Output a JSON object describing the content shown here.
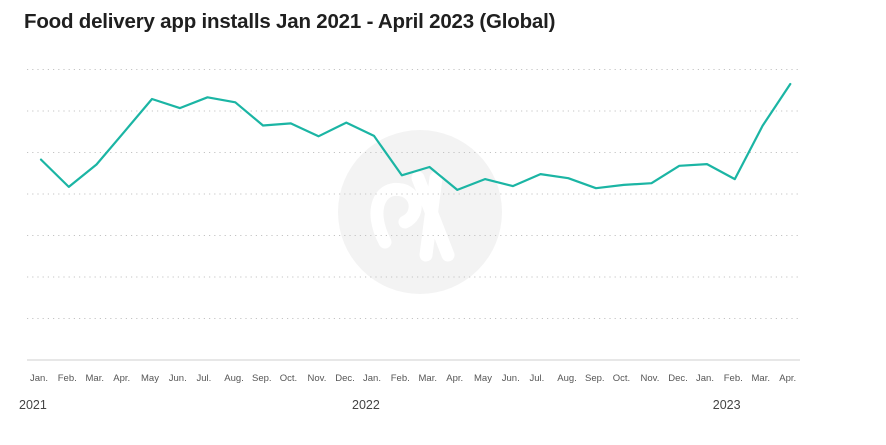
{
  "chart_data": {
    "type": "line",
    "title": "Food delivery app installs Jan 2021 - April 2023 (Global)",
    "xlabel": "",
    "ylabel": "",
    "grid": true,
    "y_tick_labels_shown": false,
    "ylim": [
      0,
      7
    ],
    "line_color": "#1bb5a4",
    "categories": [
      "Jan.",
      "Feb.",
      "Mar.",
      "Apr.",
      "May",
      "Jun.",
      "Jul.",
      "Aug.",
      "Sep.",
      "Oct.",
      "Nov.",
      "Dec.",
      "Jan.",
      "Feb.",
      "Mar.",
      "Apr.",
      "May",
      "Jun.",
      "Jul.",
      "Aug.",
      "Sep.",
      "Oct.",
      "Nov.",
      "Dec.",
      "Jan.",
      "Feb.",
      "Mar.",
      "Apr."
    ],
    "year_labels": [
      {
        "label": "2021",
        "index": 0
      },
      {
        "label": "2022",
        "index": 12
      },
      {
        "label": "2023",
        "index": 25
      }
    ],
    "series": [
      {
        "values": [
          4.83,
          4.17,
          4.71,
          5.5,
          6.29,
          6.07,
          6.33,
          6.21,
          5.65,
          5.7,
          5.39,
          5.72,
          5.4,
          4.45,
          4.65,
          4.1,
          4.36,
          4.19,
          4.48,
          4.38,
          4.14,
          4.22,
          4.26,
          4.68,
          4.72,
          4.36,
          5.64,
          6.65
        ]
      }
    ]
  }
}
